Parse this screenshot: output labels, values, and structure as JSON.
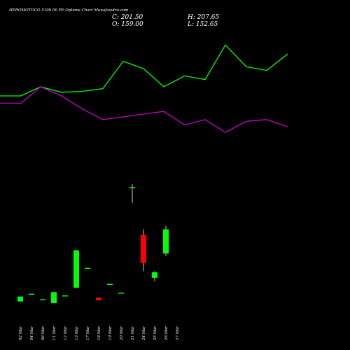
{
  "header": {
    "title": "HEROMOTOCO 5100.00 PE Options Chart Munafasutra.com",
    "open_label": "O: 159.00",
    "close_label": "C: 201.50",
    "high_label": "H: 207.65",
    "low_label": "L: 152.65"
  },
  "colors": {
    "background": "#000000",
    "up": "#00ff00",
    "down": "#ff0000",
    "line_green": "#00ff00",
    "line_purple": "#cc00cc",
    "text": "#ffffff"
  },
  "chart_data": [
    {
      "type": "line",
      "title": "",
      "x": [
        "02 Mar",
        "04 Mar",
        "06 Mar",
        "11 Mar",
        "12 Mar",
        "13 Mar",
        "17 Mar",
        "18 Mar",
        "19 Mar",
        "20 Mar",
        "21 Mar",
        "24 Mar",
        "25 Mar",
        "26 Mar",
        "27 Mar"
      ],
      "series": [
        {
          "color": "#00ff00",
          "values": [
            55,
            55,
            60,
            57,
            57.5,
            59,
            74,
            70,
            60,
            66,
            64,
            83,
            71,
            69,
            78
          ]
        },
        {
          "color": "#cc00cc",
          "values": [
            51,
            51,
            60,
            55,
            48,
            42,
            43.5,
            45,
            46.5,
            39,
            42,
            35,
            41,
            42,
            38
          ]
        }
      ],
      "ylim": [
        0,
        100
      ]
    },
    {
      "type": "candlestick",
      "title": "",
      "categories": [
        "02 Mar",
        "04 Mar",
        "06 Mar",
        "11 Mar",
        "12 Mar",
        "13 Mar",
        "17 Mar",
        "18 Mar",
        "19 Mar",
        "20 Mar",
        "21 Mar",
        "24 Mar",
        "25 Mar",
        "26 Mar",
        "27 Mar"
      ],
      "candles": [
        {
          "open": 3,
          "close": 12,
          "high": 12,
          "low": 3
        },
        {
          "open": 17,
          "close": 17,
          "high": 17,
          "low": 17
        },
        {
          "open": 7,
          "close": 7,
          "high": 7,
          "low": 7
        },
        {
          "open": 0,
          "close": 20,
          "high": 20,
          "low": 0
        },
        {
          "open": 14,
          "close": 14,
          "high": 14,
          "low": 14
        },
        {
          "open": 28,
          "close": 96,
          "high": 96,
          "low": 28
        },
        {
          "open": 64,
          "close": 64,
          "high": 64,
          "low": 64
        },
        {
          "open": 10,
          "close": 5,
          "high": 10,
          "low": 5
        },
        {
          "open": 35,
          "close": 35,
          "high": 35,
          "low": 35
        },
        {
          "open": 19,
          "close": 19,
          "high": 19,
          "low": 19
        },
        {
          "open": 209,
          "close": 211,
          "high": 216,
          "low": 182
        },
        {
          "open": 124,
          "close": 73,
          "high": 134,
          "low": 58
        },
        {
          "open": 46,
          "close": 56,
          "high": 58,
          "low": 40
        },
        {
          "open": 90,
          "close": 134,
          "high": 140,
          "low": 86
        },
        {
          "open": 0,
          "close": 0,
          "high": 0,
          "low": 0
        }
      ],
      "ylim": [
        0,
        220
      ]
    }
  ]
}
